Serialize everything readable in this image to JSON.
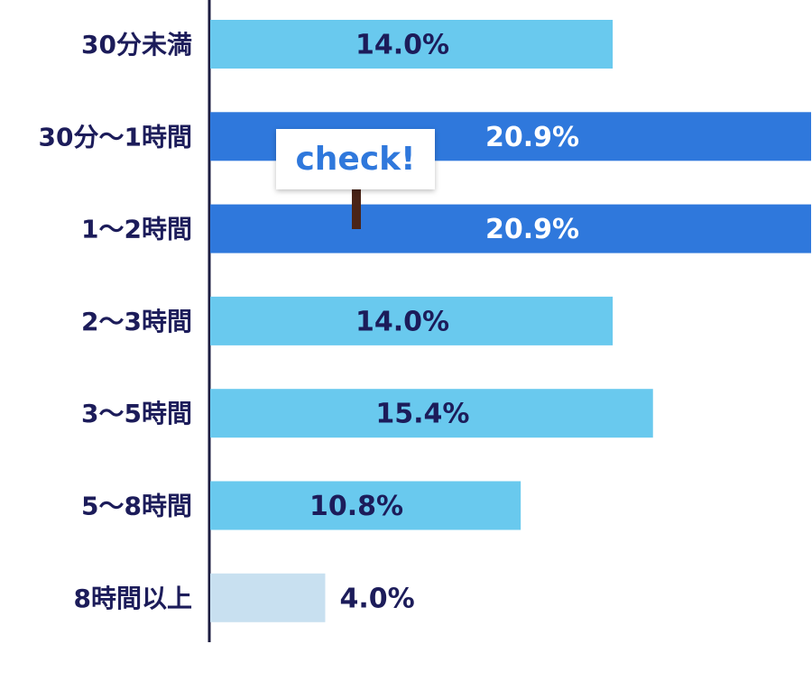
{
  "chart_data": {
    "type": "bar",
    "orientation": "horizontal",
    "categories": [
      "30分未満",
      "30分～1時間",
      "1～2時間",
      "2～3時間",
      "3～5時間",
      "5～8時間",
      "8時間以上"
    ],
    "values": [
      14.0,
      20.9,
      20.9,
      14.0,
      15.4,
      10.8,
      4.0
    ],
    "value_labels": [
      "14.0%",
      "20.9%",
      "20.9%",
      "14.0%",
      "15.4%",
      "10.8%",
      "4.0%"
    ],
    "colors": [
      "#69c9ee",
      "#2f78dc",
      "#2f78dc",
      "#69c9ee",
      "#69c9ee",
      "#69c9ee",
      "#c8e0f0"
    ],
    "xlim": [
      0,
      20.9
    ],
    "annotation": "check!"
  }
}
